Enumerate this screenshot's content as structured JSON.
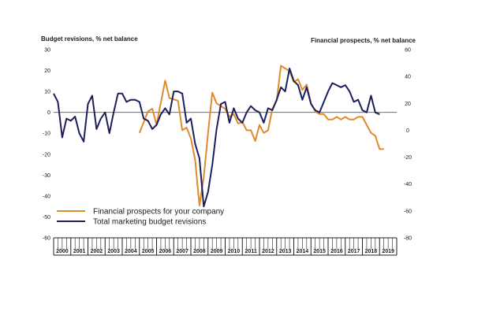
{
  "chart_data": {
    "type": "line",
    "y_left_label": "Budget revisions, % net balance",
    "y_right_label": "Financial prospects, % net balance",
    "y_left_ticks": [
      30,
      20,
      10,
      0,
      -10,
      -20,
      -30,
      -40,
      -50,
      -60
    ],
    "y_right_ticks": [
      60,
      40,
      20,
      0,
      -20,
      -40,
      -60,
      -80
    ],
    "y_left_range": [
      -60,
      30
    ],
    "y_right_range": [
      -80,
      60
    ],
    "years": [
      "2000",
      "2001",
      "2002",
      "2003",
      "2004",
      "2005",
      "2006",
      "2007",
      "2008",
      "2009",
      "2010",
      "2011",
      "2012",
      "2013",
      "2014",
      "2015",
      "2016",
      "2017",
      "2018",
      "2019"
    ],
    "x_range": [
      2000,
      2020
    ],
    "series": [
      {
        "name": "Financial prospects for your company",
        "axis": "right",
        "color": "#e08a2c",
        "points": [
          [
            2005.0,
            -2
          ],
          [
            2005.5,
            14
          ],
          [
            2005.75,
            16
          ],
          [
            2006.0,
            4
          ],
          [
            2006.5,
            37
          ],
          [
            2006.75,
            24
          ],
          [
            2007.25,
            22
          ],
          [
            2007.5,
            0
          ],
          [
            2007.75,
            2
          ],
          [
            2008.0,
            -6
          ],
          [
            2008.25,
            -22
          ],
          [
            2008.5,
            -56
          ],
          [
            2008.75,
            -35
          ],
          [
            2009.0,
            -2
          ],
          [
            2009.25,
            28
          ],
          [
            2009.5,
            20
          ],
          [
            2009.75,
            18
          ],
          [
            2010.0,
            16
          ],
          [
            2010.25,
            10
          ],
          [
            2010.5,
            12
          ],
          [
            2010.75,
            5
          ],
          [
            2011.0,
            6
          ],
          [
            2011.25,
            0
          ],
          [
            2011.5,
            0
          ],
          [
            2011.75,
            -8
          ],
          [
            2012.0,
            4
          ],
          [
            2012.25,
            -2
          ],
          [
            2012.5,
            0
          ],
          [
            2012.75,
            16
          ],
          [
            2013.0,
            22
          ],
          [
            2013.25,
            48
          ],
          [
            2013.5,
            46
          ],
          [
            2013.75,
            44
          ],
          [
            2014.0,
            36
          ],
          [
            2014.25,
            38
          ],
          [
            2014.5,
            30
          ],
          [
            2014.75,
            34
          ],
          [
            2015.0,
            20
          ],
          [
            2015.25,
            14
          ],
          [
            2015.5,
            12
          ],
          [
            2015.75,
            12
          ],
          [
            2016.0,
            8
          ],
          [
            2016.25,
            8
          ],
          [
            2016.5,
            10
          ],
          [
            2016.75,
            8
          ],
          [
            2017.0,
            10
          ],
          [
            2017.25,
            8
          ],
          [
            2017.5,
            8
          ],
          [
            2017.75,
            10
          ],
          [
            2018.0,
            10
          ],
          [
            2018.25,
            4
          ],
          [
            2018.5,
            -2
          ],
          [
            2018.75,
            -4
          ],
          [
            2019.0,
            -14
          ],
          [
            2019.25,
            -14
          ]
        ]
      },
      {
        "name": "Total marketing budget revisions",
        "axis": "left",
        "color": "#1c1f5c",
        "points": [
          [
            2000.0,
            9
          ],
          [
            2000.25,
            5
          ],
          [
            2000.5,
            -12
          ],
          [
            2000.75,
            -3
          ],
          [
            2001.0,
            -4
          ],
          [
            2001.25,
            -2
          ],
          [
            2001.5,
            -10
          ],
          [
            2001.75,
            -14
          ],
          [
            2002.0,
            4
          ],
          [
            2002.25,
            8
          ],
          [
            2002.5,
            -8
          ],
          [
            2002.75,
            -3
          ],
          [
            2003.0,
            0
          ],
          [
            2003.25,
            -10
          ],
          [
            2003.5,
            0
          ],
          [
            2003.75,
            9
          ],
          [
            2004.0,
            9
          ],
          [
            2004.25,
            5
          ],
          [
            2004.5,
            6
          ],
          [
            2004.75,
            6
          ],
          [
            2005.0,
            5
          ],
          [
            2005.25,
            -3
          ],
          [
            2005.5,
            -4
          ],
          [
            2005.75,
            -8
          ],
          [
            2006.0,
            -6
          ],
          [
            2006.25,
            -1
          ],
          [
            2006.5,
            2
          ],
          [
            2006.75,
            -1
          ],
          [
            2007.0,
            10
          ],
          [
            2007.25,
            10
          ],
          [
            2007.5,
            9
          ],
          [
            2007.75,
            -5
          ],
          [
            2008.0,
            -3
          ],
          [
            2008.25,
            -15
          ],
          [
            2008.5,
            -22
          ],
          [
            2008.75,
            -45
          ],
          [
            2009.0,
            -38
          ],
          [
            2009.25,
            -25
          ],
          [
            2009.5,
            -8
          ],
          [
            2009.75,
            4
          ],
          [
            2010.0,
            5
          ],
          [
            2010.25,
            -5
          ],
          [
            2010.5,
            2
          ],
          [
            2010.75,
            -3
          ],
          [
            2011.0,
            -5
          ],
          [
            2011.25,
            0
          ],
          [
            2011.5,
            3
          ],
          [
            2011.75,
            1
          ],
          [
            2012.0,
            0
          ],
          [
            2012.25,
            -5
          ],
          [
            2012.5,
            2
          ],
          [
            2012.75,
            1
          ],
          [
            2013.0,
            6
          ],
          [
            2013.25,
            12
          ],
          [
            2013.5,
            10
          ],
          [
            2013.75,
            21
          ],
          [
            2014.0,
            15
          ],
          [
            2014.25,
            13
          ],
          [
            2014.5,
            6
          ],
          [
            2014.75,
            12
          ],
          [
            2015.0,
            4
          ],
          [
            2015.25,
            1
          ],
          [
            2015.5,
            0
          ],
          [
            2015.75,
            5
          ],
          [
            2016.0,
            10
          ],
          [
            2016.25,
            14
          ],
          [
            2016.5,
            13
          ],
          [
            2016.75,
            12
          ],
          [
            2017.0,
            13
          ],
          [
            2017.25,
            10
          ],
          [
            2017.5,
            5
          ],
          [
            2017.75,
            6
          ],
          [
            2018.0,
            1
          ],
          [
            2018.25,
            0
          ],
          [
            2018.5,
            8
          ],
          [
            2018.75,
            0
          ],
          [
            2019.0,
            -1
          ]
        ]
      }
    ],
    "legend": {
      "position": "lower-left"
    },
    "grid": false,
    "zero_line": true
  }
}
